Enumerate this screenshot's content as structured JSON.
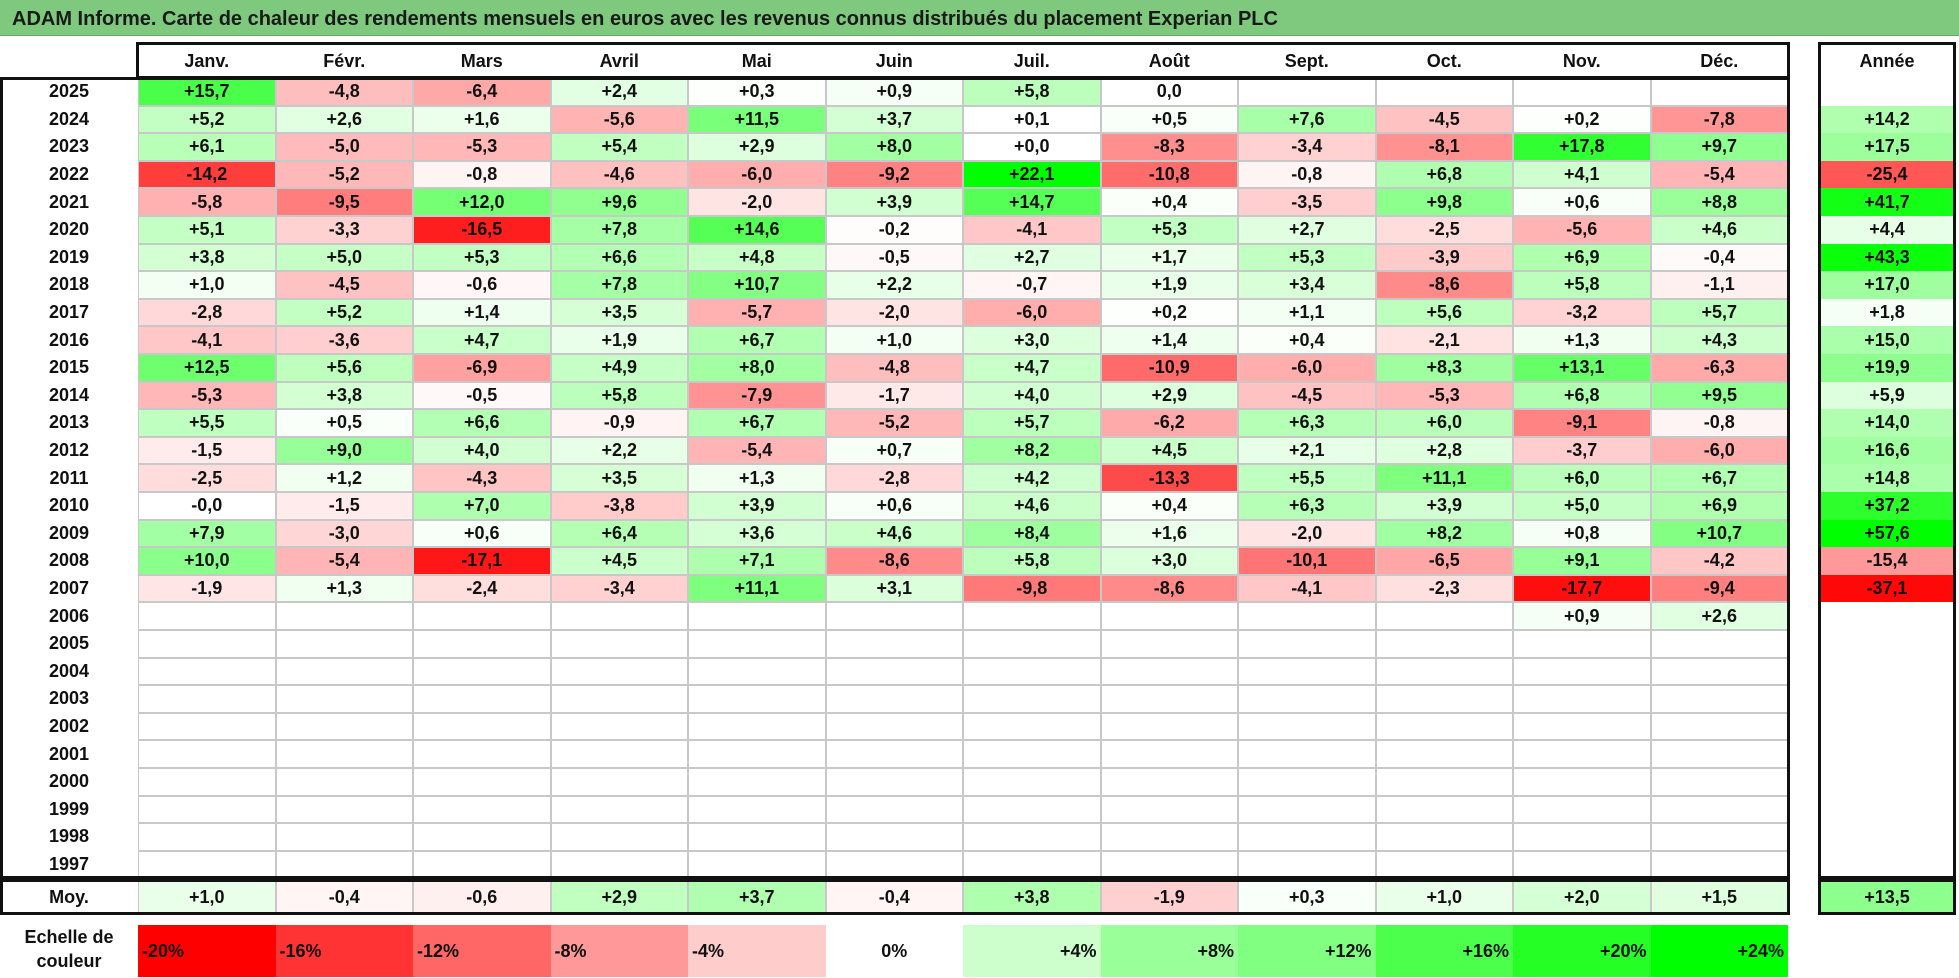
{
  "title": "ADAM Informe. Carte de chaleur des rendements mensuels en euros avec les revenus connus distribués du placement Experian PLC",
  "chart_data": {
    "type": "heatmap",
    "months": [
      "Janv.",
      "Févr.",
      "Mars",
      "Avril",
      "Mai",
      "Juin",
      "Juil.",
      "Août",
      "Sept.",
      "Oct.",
      "Nov.",
      "Déc."
    ],
    "year_header": "Année",
    "rows": [
      {
        "year": "2025",
        "values": [
          "+15,7",
          "-4,8",
          "-6,4",
          "+2,4",
          "+0,3",
          "+0,9",
          "+5,8",
          "0,0",
          "",
          "",
          "",
          ""
        ],
        "annual": ""
      },
      {
        "year": "2024",
        "values": [
          "+5,2",
          "+2,6",
          "+1,6",
          "-5,6",
          "+11,5",
          "+3,7",
          "+0,1",
          "+0,5",
          "+7,6",
          "-4,5",
          "+0,2",
          "-7,8"
        ],
        "annual": "+14,2"
      },
      {
        "year": "2023",
        "values": [
          "+6,1",
          "-5,0",
          "-5,3",
          "+5,4",
          "+2,9",
          "+8,0",
          "+0,0",
          "-8,3",
          "-3,4",
          "-8,1",
          "+17,8",
          "+9,7"
        ],
        "annual": "+17,5"
      },
      {
        "year": "2022",
        "values": [
          "-14,2",
          "-5,2",
          "-0,8",
          "-4,6",
          "-6,0",
          "-9,2",
          "+22,1",
          "-10,8",
          "-0,8",
          "+6,8",
          "+4,1",
          "-5,4"
        ],
        "annual": "-25,4"
      },
      {
        "year": "2021",
        "values": [
          "-5,8",
          "-9,5",
          "+12,0",
          "+9,6",
          "-2,0",
          "+3,9",
          "+14,7",
          "+0,4",
          "-3,5",
          "+9,8",
          "+0,6",
          "+8,8"
        ],
        "annual": "+41,7"
      },
      {
        "year": "2020",
        "values": [
          "+5,1",
          "-3,3",
          "-16,5",
          "+7,8",
          "+14,6",
          "-0,2",
          "-4,1",
          "+5,3",
          "+2,7",
          "-2,5",
          "-5,6",
          "+4,6"
        ],
        "annual": "+4,4"
      },
      {
        "year": "2019",
        "values": [
          "+3,8",
          "+5,0",
          "+5,3",
          "+6,6",
          "+4,8",
          "-0,5",
          "+2,7",
          "+1,7",
          "+5,3",
          "-3,9",
          "+6,9",
          "-0,4"
        ],
        "annual": "+43,3"
      },
      {
        "year": "2018",
        "values": [
          "+1,0",
          "-4,5",
          "-0,6",
          "+7,8",
          "+10,7",
          "+2,2",
          "-0,7",
          "+1,9",
          "+3,4",
          "-8,6",
          "+5,8",
          "-1,1"
        ],
        "annual": "+17,0"
      },
      {
        "year": "2017",
        "values": [
          "-2,8",
          "+5,2",
          "+1,4",
          "+3,5",
          "-5,7",
          "-2,0",
          "-6,0",
          "+0,2",
          "+1,1",
          "+5,6",
          "-3,2",
          "+5,7"
        ],
        "annual": "+1,8"
      },
      {
        "year": "2016",
        "values": [
          "-4,1",
          "-3,6",
          "+4,7",
          "+1,9",
          "+6,7",
          "+1,0",
          "+3,0",
          "+1,4",
          "+0,4",
          "-2,1",
          "+1,3",
          "+4,3"
        ],
        "annual": "+15,0"
      },
      {
        "year": "2015",
        "values": [
          "+12,5",
          "+5,6",
          "-6,9",
          "+4,9",
          "+8,0",
          "-4,8",
          "+4,7",
          "-10,9",
          "-6,0",
          "+8,3",
          "+13,1",
          "-6,3"
        ],
        "annual": "+19,9"
      },
      {
        "year": "2014",
        "values": [
          "-5,3",
          "+3,8",
          "-0,5",
          "+5,8",
          "-7,9",
          "-1,7",
          "+4,0",
          "+2,9",
          "-4,5",
          "-5,3",
          "+6,8",
          "+9,5"
        ],
        "annual": "+5,9"
      },
      {
        "year": "2013",
        "values": [
          "+5,5",
          "+0,5",
          "+6,6",
          "-0,9",
          "+6,7",
          "-5,2",
          "+5,7",
          "-6,2",
          "+6,3",
          "+6,0",
          "-9,1",
          "-0,8"
        ],
        "annual": "+14,0"
      },
      {
        "year": "2012",
        "values": [
          "-1,5",
          "+9,0",
          "+4,0",
          "+2,2",
          "-5,4",
          "+0,7",
          "+8,2",
          "+4,5",
          "+2,1",
          "+2,8",
          "-3,7",
          "-6,0"
        ],
        "annual": "+16,6"
      },
      {
        "year": "2011",
        "values": [
          "-2,5",
          "+1,2",
          "-4,3",
          "+3,5",
          "+1,3",
          "-2,8",
          "+4,2",
          "-13,3",
          "+5,5",
          "+11,1",
          "+6,0",
          "+6,7"
        ],
        "annual": "+14,8"
      },
      {
        "year": "2010",
        "values": [
          "-0,0",
          "-1,5",
          "+7,0",
          "-3,8",
          "+3,9",
          "+0,6",
          "+4,6",
          "+0,4",
          "+6,3",
          "+3,9",
          "+5,0",
          "+6,9"
        ],
        "annual": "+37,2"
      },
      {
        "year": "2009",
        "values": [
          "+7,9",
          "-3,0",
          "+0,6",
          "+6,4",
          "+3,6",
          "+4,6",
          "+8,4",
          "+1,6",
          "-2,0",
          "+8,2",
          "+0,8",
          "+10,7"
        ],
        "annual": "+57,6"
      },
      {
        "year": "2008",
        "values": [
          "+10,0",
          "-5,4",
          "-17,1",
          "+4,5",
          "+7,1",
          "-8,6",
          "+5,8",
          "+3,0",
          "-10,1",
          "-6,5",
          "+9,1",
          "-4,2"
        ],
        "annual": "-15,4"
      },
      {
        "year": "2007",
        "values": [
          "-1,9",
          "+1,3",
          "-2,4",
          "-3,4",
          "+11,1",
          "+3,1",
          "-9,8",
          "-8,6",
          "-4,1",
          "-2,3",
          "-17,7",
          "-9,4"
        ],
        "annual": "-37,1"
      },
      {
        "year": "2006",
        "values": [
          "",
          "",
          "",
          "",
          "",
          "",
          "",
          "",
          "",
          "",
          "+0,9",
          "+2,6"
        ],
        "annual": ""
      },
      {
        "year": "2005",
        "values": [
          "",
          "",
          "",
          "",
          "",
          "",
          "",
          "",
          "",
          "",
          "",
          ""
        ],
        "annual": ""
      },
      {
        "year": "2004",
        "values": [
          "",
          "",
          "",
          "",
          "",
          "",
          "",
          "",
          "",
          "",
          "",
          ""
        ],
        "annual": ""
      },
      {
        "year": "2003",
        "values": [
          "",
          "",
          "",
          "",
          "",
          "",
          "",
          "",
          "",
          "",
          "",
          ""
        ],
        "annual": ""
      },
      {
        "year": "2002",
        "values": [
          "",
          "",
          "",
          "",
          "",
          "",
          "",
          "",
          "",
          "",
          "",
          ""
        ],
        "annual": ""
      },
      {
        "year": "2001",
        "values": [
          "",
          "",
          "",
          "",
          "",
          "",
          "",
          "",
          "",
          "",
          "",
          ""
        ],
        "annual": ""
      },
      {
        "year": "2000",
        "values": [
          "",
          "",
          "",
          "",
          "",
          "",
          "",
          "",
          "",
          "",
          "",
          ""
        ],
        "annual": ""
      },
      {
        "year": "1999",
        "values": [
          "",
          "",
          "",
          "",
          "",
          "",
          "",
          "",
          "",
          "",
          "",
          ""
        ],
        "annual": ""
      },
      {
        "year": "1998",
        "values": [
          "",
          "",
          "",
          "",
          "",
          "",
          "",
          "",
          "",
          "",
          "",
          ""
        ],
        "annual": ""
      },
      {
        "year": "1997",
        "values": [
          "",
          "",
          "",
          "",
          "",
          "",
          "",
          "",
          "",
          "",
          "",
          ""
        ],
        "annual": ""
      }
    ],
    "average": {
      "label": "Moy.",
      "values": [
        "+1,0",
        "-0,4",
        "-0,6",
        "+2,9",
        "+3,7",
        "-0,4",
        "+3,8",
        "-1,9",
        "+0,3",
        "+1,0",
        "+2,0",
        "+1,5"
      ],
      "annual": "+13,5"
    },
    "color_scale": {
      "label": "Echelle de couleur",
      "steps": [
        "-20%",
        "-16%",
        "-12%",
        "-8%",
        "-4%",
        "0%",
        "+4%",
        "+8%",
        "+12%",
        "+16%",
        "+20%",
        "+24%"
      ],
      "colors": [
        "#ff0000",
        "#ff3333",
        "#ff6666",
        "#ff9999",
        "#ffcccc",
        "#ffffff",
        "#ccffcc",
        "#99ff99",
        "#80ff80",
        "#4dff4d",
        "#26ff26",
        "#00ff00"
      ]
    }
  }
}
